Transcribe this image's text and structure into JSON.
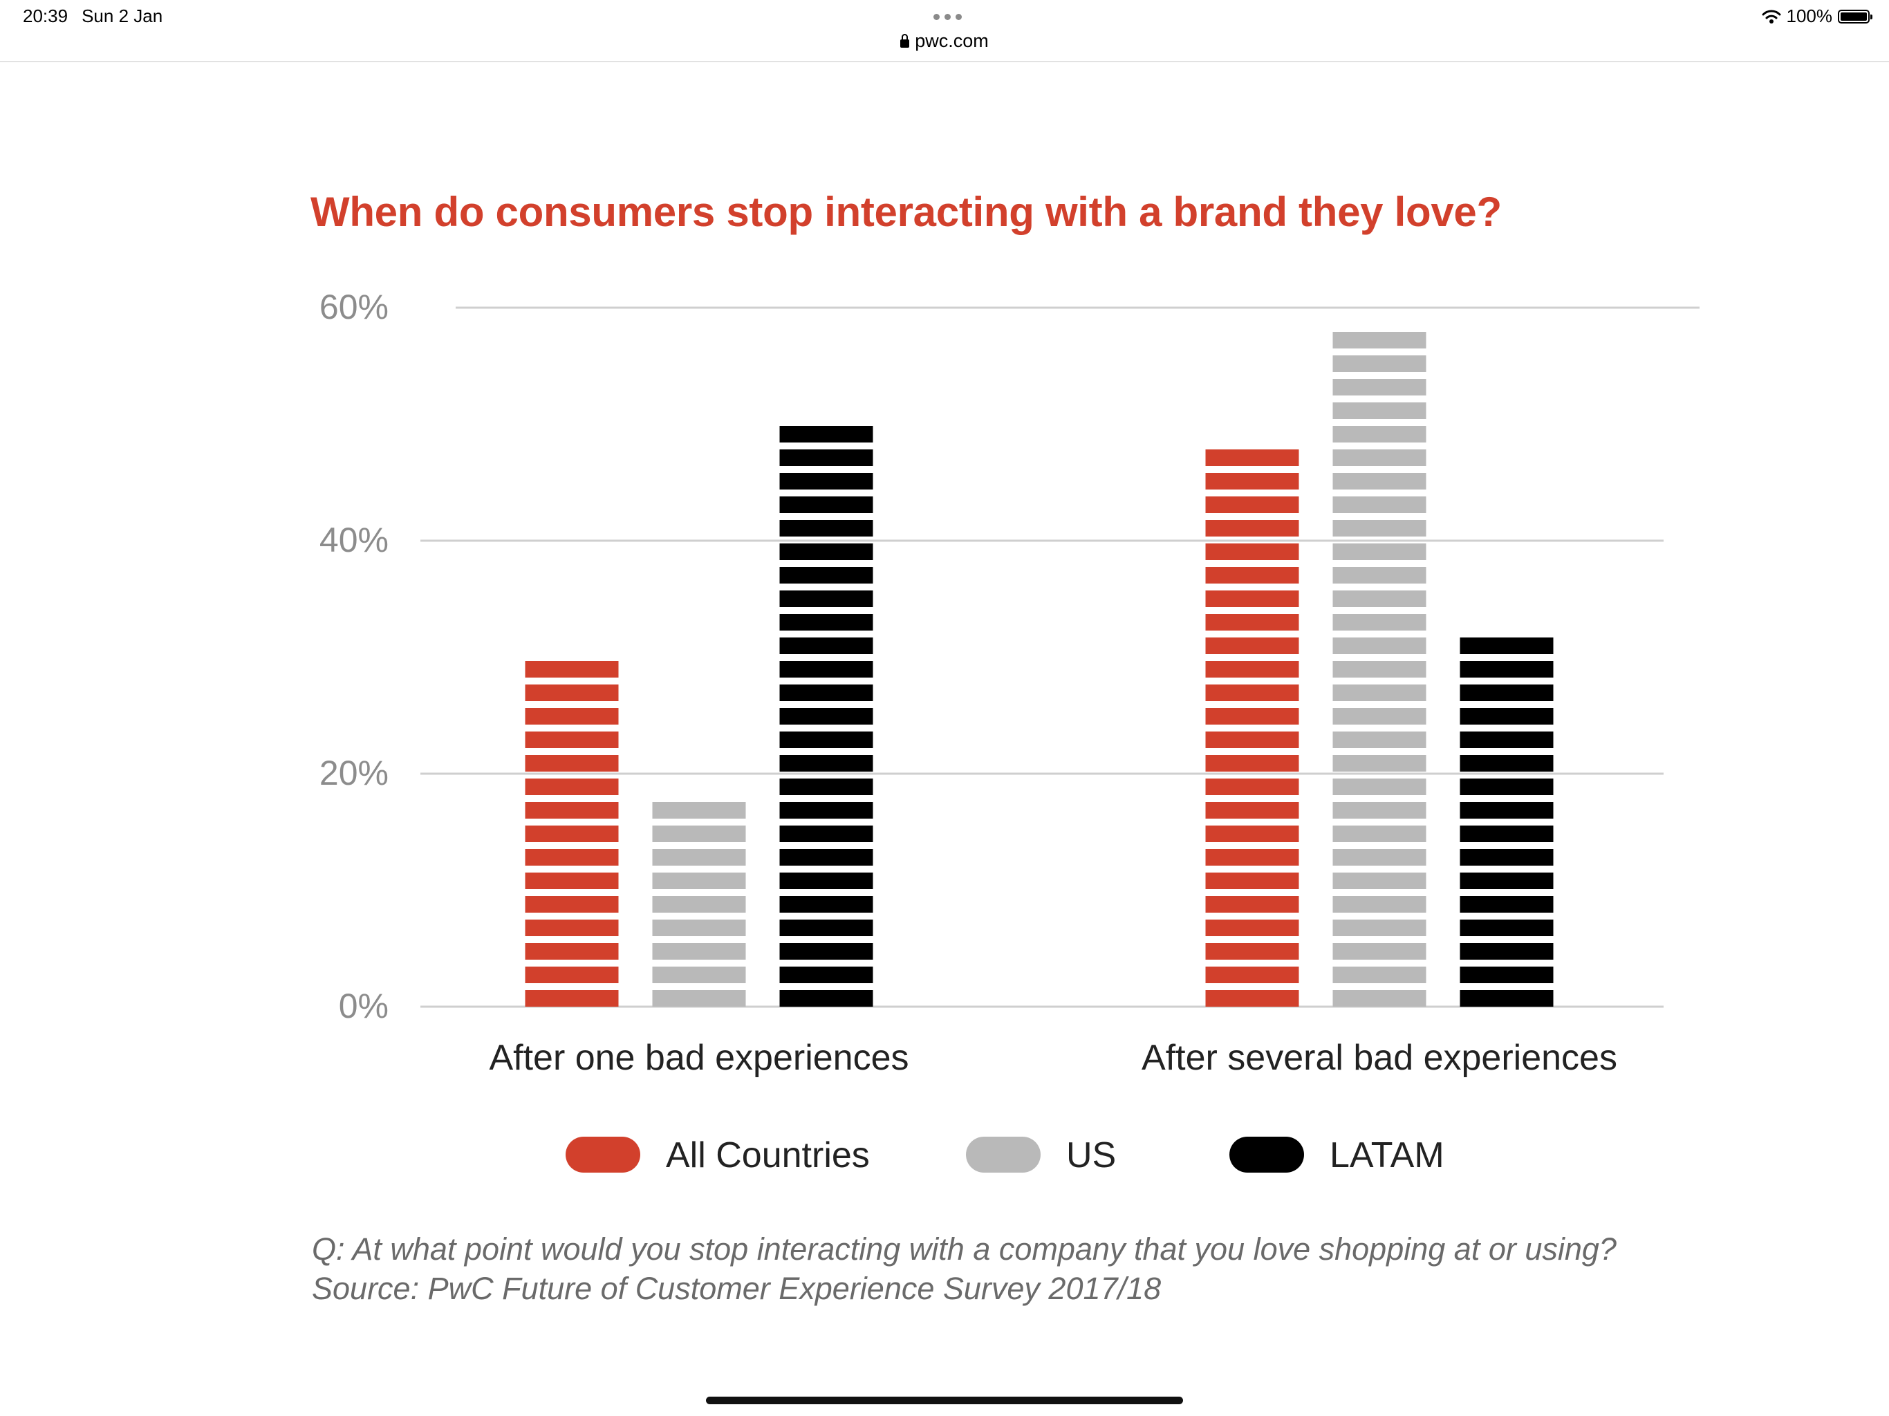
{
  "status_bar": {
    "time": "20:39",
    "date": "Sun 2 Jan",
    "url": "pwc.com",
    "battery": "100%",
    "icons": [
      "lock-icon",
      "wifi-icon",
      "battery-icon",
      "menu-dots-icon"
    ]
  },
  "chart_data": {
    "type": "bar",
    "title": "When do consumers stop interacting with a brand they love?",
    "categories": [
      "After one bad experiences",
      "After several bad experiences"
    ],
    "series": [
      {
        "name": "All Countries",
        "values": [
          30,
          48
        ],
        "color": "#d2402c"
      },
      {
        "name": "US",
        "values": [
          18,
          58
        ],
        "color": "#b9b9b9"
      },
      {
        "name": "LATAM",
        "values": [
          50,
          32
        ],
        "color": "#000000"
      }
    ],
    "ylim": [
      0,
      60
    ],
    "yticks": [
      "0%",
      "20%",
      "40%",
      "60%"
    ],
    "ytick_values": [
      0,
      20,
      40,
      60
    ],
    "xlabel": "",
    "ylabel": "",
    "grid": true,
    "legend_position": "bottom"
  },
  "caption": {
    "question": "Q: At what point would you stop interacting with a company that you love shopping at or using?",
    "source": "Source: PwC Future of Customer Experience Survey 2017/18"
  }
}
